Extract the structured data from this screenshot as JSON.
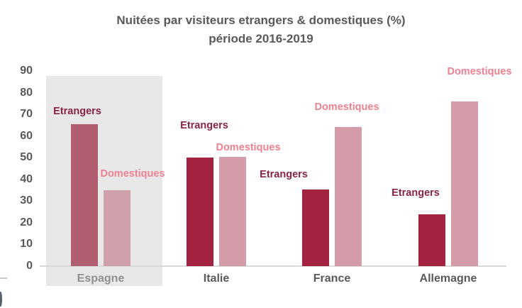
{
  "chart_data": {
    "type": "bar",
    "title": "Nuitées par visiteurs etrangers & domestiques (%)",
    "subtitle": "période 2016-2019",
    "categories": [
      "Espagne",
      "Italie",
      "France",
      "Allemagne"
    ],
    "series": [
      {
        "name": "Etrangers",
        "values": [
          65.5,
          50,
          35.5,
          24
        ],
        "bar_color": "#a32240",
        "bar_color_highlighted": "#b15e70",
        "label_color": "#8b2342"
      },
      {
        "name": "Domestiques",
        "values": [
          35,
          50.5,
          64,
          76
        ],
        "bar_color": "#d49ba9",
        "bar_color_highlighted": "#cfa0aa",
        "label_color": "#ef8191"
      }
    ],
    "ylim": [
      0,
      90
    ],
    "yticks": [
      90,
      80,
      70,
      60,
      50,
      40,
      30,
      20,
      10,
      0
    ],
    "xlabel": "",
    "ylabel": "",
    "grid": false,
    "legend_position": "none",
    "data_label_style": "series name above each bar",
    "highlighted_category": "Espagne",
    "colors": {
      "title": "#595959",
      "axis_text": "#595959",
      "category_text": "#595959",
      "highlighted_category_text": "#8f8f8f",
      "highlight_band": "#e9e8e8",
      "axis_line": "#d9d9d9",
      "background": "#ffffff"
    }
  }
}
